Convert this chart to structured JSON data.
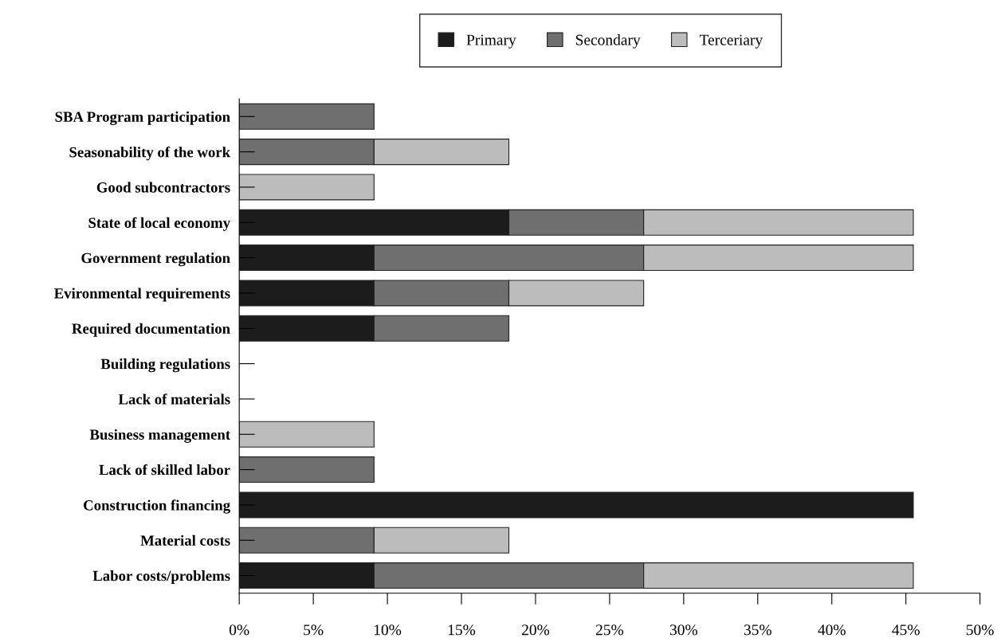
{
  "chart_data": {
    "type": "bar",
    "orientation": "horizontal",
    "stacked": true,
    "categories": [
      "SBA Program participation",
      "Seasonability of the work",
      "Good subcontractors",
      "State of local economy",
      "Government regulation",
      "Evironmental requirements",
      "Required documentation",
      "Building regulations",
      "Lack of materials",
      "Business management",
      "Lack of skilled labor",
      "Construction financing",
      "Material costs",
      "Labor costs/problems"
    ],
    "series": [
      {
        "name": "Primary",
        "color": "#1c1c1c",
        "values": [
          null,
          null,
          null,
          18.2,
          9.1,
          9.1,
          9.1,
          null,
          null,
          null,
          null,
          45.5,
          null,
          9.1
        ]
      },
      {
        "name": "Secondary",
        "color": "#6f6f6f",
        "values": [
          9.1,
          9.1,
          null,
          9.1,
          18.2,
          9.1,
          9.1,
          null,
          null,
          null,
          9.1,
          null,
          9.1,
          18.2
        ]
      },
      {
        "name": "Terceriary",
        "color": "#bcbcbc",
        "values": [
          null,
          9.1,
          9.1,
          18.2,
          18.2,
          9.1,
          null,
          null,
          null,
          9.1,
          null,
          null,
          9.1,
          18.2
        ]
      }
    ],
    "xlim": [
      0,
      50
    ],
    "xticks": [
      {
        "value": 0,
        "label": "0%"
      },
      {
        "value": 5,
        "label": "5%"
      },
      {
        "value": 10,
        "label": "10%"
      },
      {
        "value": 15,
        "label": "15%"
      },
      {
        "value": 20,
        "label": "20%"
      },
      {
        "value": 25,
        "label": "25%"
      },
      {
        "value": 30,
        "label": "30%"
      },
      {
        "value": 35,
        "label": "35%"
      },
      {
        "value": 40,
        "label": "40%"
      },
      {
        "value": 45,
        "label": "45%"
      },
      {
        "value": 50,
        "label": "50%"
      }
    ],
    "legend": "top",
    "grid": false
  }
}
